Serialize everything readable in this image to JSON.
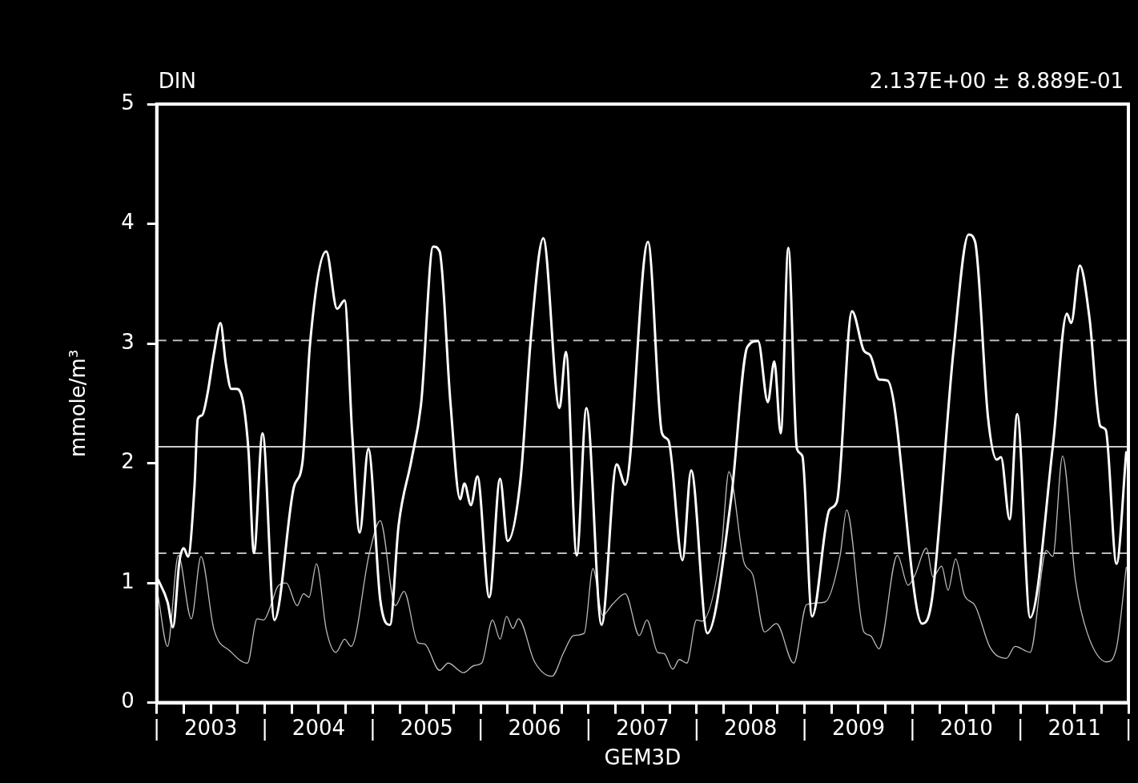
{
  "chart_data": {
    "type": "line",
    "title": "DIN",
    "xlabel": "GEM3D",
    "ylabel": "mmole/m³",
    "annotations": [
      "2.137E+00 ± 8.889E-01"
    ],
    "marker": "none",
    "grid": false,
    "xlim": [
      2003,
      2012
    ],
    "ylim": [
      0,
      5
    ],
    "yticks": [
      0,
      1,
      2,
      3,
      4,
      5
    ],
    "xticks": [
      {
        "value": 2003,
        "label": "|"
      },
      {
        "value": 2003.25,
        "label": null
      },
      {
        "value": 2003.5,
        "label": "2003"
      },
      {
        "value": 2003.75,
        "label": null
      },
      {
        "value": 2004,
        "label": "|"
      },
      {
        "value": 2004.25,
        "label": null
      },
      {
        "value": 2004.5,
        "label": "2004"
      },
      {
        "value": 2004.75,
        "label": null
      },
      {
        "value": 2005,
        "label": "|"
      },
      {
        "value": 2005.25,
        "label": null
      },
      {
        "value": 2005.5,
        "label": "2005"
      },
      {
        "value": 2005.75,
        "label": null
      },
      {
        "value": 2006,
        "label": "|"
      },
      {
        "value": 2006.25,
        "label": null
      },
      {
        "value": 2006.5,
        "label": "2006"
      },
      {
        "value": 2006.75,
        "label": null
      },
      {
        "value": 2007,
        "label": "|"
      },
      {
        "value": 2007.25,
        "label": null
      },
      {
        "value": 2007.5,
        "label": "2007"
      },
      {
        "value": 2007.75,
        "label": null
      },
      {
        "value": 2008,
        "label": "|"
      },
      {
        "value": 2008.25,
        "label": null
      },
      {
        "value": 2008.5,
        "label": "2008"
      },
      {
        "value": 2008.75,
        "label": null
      },
      {
        "value": 2009,
        "label": "|"
      },
      {
        "value": 2009.25,
        "label": null
      },
      {
        "value": 2009.5,
        "label": "2009"
      },
      {
        "value": 2009.75,
        "label": null
      },
      {
        "value": 2010,
        "label": "|"
      },
      {
        "value": 2010.25,
        "label": null
      },
      {
        "value": 2010.5,
        "label": "2010"
      },
      {
        "value": 2010.75,
        "label": null
      },
      {
        "value": 2011,
        "label": "|"
      },
      {
        "value": 2011.25,
        "label": null
      },
      {
        "value": 2011.5,
        "label": "2011"
      },
      {
        "value": 2011.75,
        "label": null
      },
      {
        "value": 2012,
        "label": "|"
      }
    ],
    "ref_lines": [
      {
        "axis": "y",
        "value": 2.137,
        "label": null,
        "color": "#cccccc",
        "line_style": "solid"
      },
      {
        "axis": "y",
        "value": 3.026,
        "label": null,
        "color": "#bbbbbb",
        "line_style": "dashed"
      },
      {
        "axis": "y",
        "value": 1.248,
        "label": null,
        "color": "#bbbbbb",
        "line_style": "dashed"
      }
    ],
    "series": [
      {
        "color": "#ffffff",
        "x": [
          2003.0,
          2003.1,
          2003.15,
          2003.21,
          2003.25,
          2003.29,
          2003.35,
          2003.38,
          2003.42,
          2003.47,
          2003.53,
          2003.59,
          2003.64,
          2003.69,
          2003.74,
          2003.8,
          2003.85,
          2003.9,
          2003.98,
          2004.09,
          2004.27,
          2004.35,
          2004.42,
          2004.57,
          2004.67,
          2004.74,
          2004.81,
          2004.88,
          2004.96,
          2005.07,
          2005.16,
          2005.24,
          2005.36,
          2005.45,
          2005.56,
          2005.62,
          2005.72,
          2005.81,
          2005.85,
          2005.91,
          2005.97,
          2006.08,
          2006.18,
          2006.25,
          2006.37,
          2006.47,
          2006.58,
          2006.73,
          2006.79,
          2006.89,
          2006.98,
          2007.12,
          2007.26,
          2007.34,
          2007.55,
          2007.68,
          2007.74,
          2007.87,
          2007.95,
          2008.1,
          2008.32,
          2008.47,
          2008.57,
          2008.66,
          2008.72,
          2008.78,
          2008.85,
          2008.93,
          2008.98,
          2009.07,
          2009.23,
          2009.3,
          2009.44,
          2009.55,
          2009.61,
          2009.69,
          2009.77,
          2010.09,
          2010.18,
          2010.38,
          2010.52,
          2010.58,
          2010.7,
          2010.78,
          2010.82,
          2010.9,
          2010.97,
          2011.09,
          2011.3,
          2011.43,
          2011.47,
          2011.55,
          2011.64,
          2011.74,
          2011.79,
          2011.89,
          2011.98
        ],
        "values": [
          1.05,
          0.84,
          0.63,
          1.18,
          1.29,
          1.22,
          1.81,
          2.37,
          2.4,
          2.58,
          2.92,
          3.17,
          2.83,
          2.62,
          2.62,
          2.51,
          2.1,
          1.25,
          2.25,
          0.69,
          1.8,
          2.01,
          3.0,
          3.77,
          3.29,
          3.36,
          2.25,
          1.42,
          2.12,
          0.86,
          0.65,
          1.48,
          2.03,
          2.51,
          3.81,
          3.77,
          2.51,
          1.7,
          1.83,
          1.65,
          1.89,
          0.88,
          1.87,
          1.35,
          1.87,
          3.1,
          3.88,
          2.46,
          2.93,
          1.23,
          2.46,
          0.65,
          1.99,
          1.82,
          3.85,
          2.25,
          2.19,
          1.19,
          1.94,
          0.58,
          1.7,
          2.97,
          3.02,
          2.51,
          2.85,
          2.25,
          3.8,
          2.12,
          2.06,
          0.72,
          1.61,
          1.68,
          3.27,
          2.94,
          2.9,
          2.7,
          2.69,
          0.66,
          0.86,
          2.94,
          3.91,
          3.85,
          2.38,
          2.03,
          2.05,
          1.53,
          2.41,
          0.71,
          2.14,
          3.25,
          3.17,
          3.65,
          3.21,
          2.31,
          2.28,
          1.16,
          2.09
        ]
      },
      {
        "color": "#bbbbbb",
        "x": [
          2003.01,
          2003.1,
          2003.2,
          2003.32,
          2003.41,
          2003.53,
          2003.68,
          2003.84,
          2003.93,
          2003.99,
          2004.06,
          2004.12,
          2004.2,
          2004.3,
          2004.36,
          2004.41,
          2004.48,
          2004.57,
          2004.66,
          2004.74,
          2004.8,
          2004.97,
          2005.07,
          2005.21,
          2005.29,
          2005.42,
          2005.48,
          2005.62,
          2005.7,
          2005.84,
          2005.94,
          2006.01,
          2006.11,
          2006.18,
          2006.24,
          2006.3,
          2006.35,
          2006.5,
          2006.66,
          2006.77,
          2006.86,
          2006.96,
          2007.04,
          2007.13,
          2007.22,
          2007.34,
          2007.47,
          2007.54,
          2007.64,
          2007.7,
          2007.78,
          2007.84,
          2007.91,
          2008.0,
          2008.05,
          2008.23,
          2008.3,
          2008.44,
          2008.52,
          2008.63,
          2008.74,
          2008.9,
          2009.02,
          2009.19,
          2009.33,
          2009.39,
          2009.55,
          2009.61,
          2009.69,
          2009.86,
          2009.96,
          2010.02,
          2010.13,
          2010.19,
          2010.27,
          2010.33,
          2010.4,
          2010.48,
          2010.58,
          2010.72,
          2010.87,
          2010.95,
          2011.09,
          2011.24,
          2011.3,
          2011.39,
          2011.51,
          2011.62,
          2011.8,
          2011.89,
          2011.98
        ],
        "values": [
          0.91,
          0.47,
          1.23,
          0.7,
          1.22,
          0.61,
          0.43,
          0.33,
          0.7,
          0.69,
          0.82,
          0.97,
          1.0,
          0.81,
          0.91,
          0.88,
          1.16,
          0.61,
          0.42,
          0.53,
          0.47,
          1.25,
          1.52,
          0.81,
          0.93,
          0.5,
          0.49,
          0.27,
          0.33,
          0.25,
          0.31,
          0.33,
          0.69,
          0.53,
          0.72,
          0.62,
          0.7,
          0.34,
          0.22,
          0.42,
          0.56,
          0.58,
          1.12,
          0.73,
          0.82,
          0.91,
          0.56,
          0.69,
          0.42,
          0.41,
          0.28,
          0.36,
          0.33,
          0.69,
          0.68,
          1.29,
          1.93,
          1.17,
          1.07,
          0.59,
          0.66,
          0.33,
          0.82,
          0.84,
          1.23,
          1.61,
          0.59,
          0.56,
          0.45,
          1.23,
          0.98,
          1.06,
          1.29,
          1.05,
          1.14,
          0.94,
          1.2,
          0.9,
          0.81,
          0.46,
          0.37,
          0.47,
          0.42,
          1.27,
          1.22,
          2.06,
          1.02,
          0.58,
          0.34,
          0.46,
          1.13
        ]
      }
    ]
  }
}
